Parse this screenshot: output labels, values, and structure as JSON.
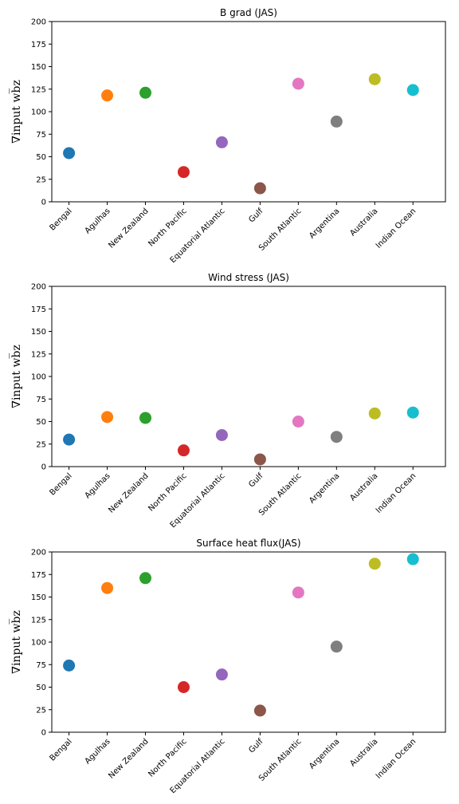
{
  "figure": {
    "ylabel": "∇input wb̅z"
  },
  "chart_data": [
    {
      "type": "scatter",
      "title": "B grad (JAS)",
      "categories": [
        "Bengal",
        "Agulhas",
        "New Zealand",
        "North Pacific",
        "Equatorial Atlantic",
        "Gulf",
        "South Atlantic",
        "Argentina",
        "Australia",
        "Indian Ocean"
      ],
      "values": [
        54,
        118,
        121,
        33,
        66,
        15,
        131,
        89,
        136,
        124
      ],
      "ylim": [
        0,
        200
      ],
      "yticks": [
        0,
        25,
        50,
        75,
        100,
        125,
        150,
        175,
        200
      ],
      "colors": [
        "#1f77b4",
        "#ff7f0e",
        "#2ca02c",
        "#d62728",
        "#9467bd",
        "#8c564b",
        "#e377c2",
        "#7f7f7f",
        "#bcbd22",
        "#17becf"
      ]
    },
    {
      "type": "scatter",
      "title": "Wind stress (JAS)",
      "categories": [
        "Bengal",
        "Agulhas",
        "New Zealand",
        "North Pacific",
        "Equatorial Atlantic",
        "Gulf",
        "South Atlantic",
        "Argentina",
        "Australia",
        "Indian Ocean"
      ],
      "values": [
        30,
        55,
        54,
        18,
        35,
        8,
        50,
        33,
        59,
        60
      ],
      "ylim": [
        0,
        200
      ],
      "yticks": [
        0,
        25,
        50,
        75,
        100,
        125,
        150,
        175,
        200
      ],
      "colors": [
        "#1f77b4",
        "#ff7f0e",
        "#2ca02c",
        "#d62728",
        "#9467bd",
        "#8c564b",
        "#e377c2",
        "#7f7f7f",
        "#bcbd22",
        "#17becf"
      ]
    },
    {
      "type": "scatter",
      "title": "Surface heat flux(JAS)",
      "categories": [
        "Bengal",
        "Agulhas",
        "New Zealand",
        "North Pacific",
        "Equatorial Atlantic",
        "Gulf",
        "South Atlantic",
        "Argentina",
        "Australia",
        "Indian Ocean"
      ],
      "values": [
        74,
        160,
        171,
        50,
        64,
        24,
        155,
        95,
        187,
        192
      ],
      "ylim": [
        0,
        200
      ],
      "yticks": [
        0,
        25,
        50,
        75,
        100,
        125,
        150,
        175,
        200
      ],
      "colors": [
        "#1f77b4",
        "#ff7f0e",
        "#2ca02c",
        "#d62728",
        "#9467bd",
        "#8c564b",
        "#e377c2",
        "#7f7f7f",
        "#bcbd22",
        "#17becf"
      ]
    }
  ]
}
